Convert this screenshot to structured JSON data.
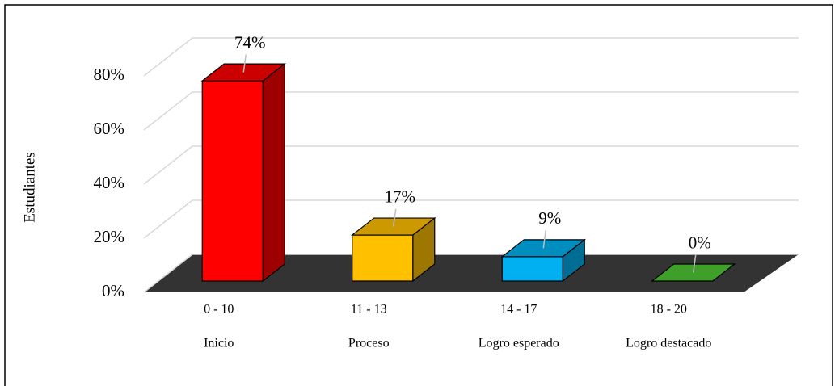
{
  "chart_data": {
    "type": "bar3d",
    "y_label": "Estudiantes",
    "categories": [
      "0 - 10",
      "11 - 13",
      "14 - 17",
      "18 - 20"
    ],
    "levels": [
      "Inicio",
      "Proceso",
      "Logro esperado",
      "Logro destacado"
    ],
    "values": [
      74,
      17,
      9,
      0
    ],
    "value_labels": [
      "74%",
      "17%",
      "9%",
      "0%"
    ],
    "colors": [
      "#ff0000",
      "#ffc000",
      "#00b0f0",
      "#4ec832"
    ],
    "ylim": [
      0,
      80
    ],
    "yticks": [
      {
        "value": 0,
        "label": "0%"
      },
      {
        "value": 20,
        "label": "20%"
      },
      {
        "value": 40,
        "label": "40%"
      },
      {
        "value": 60,
        "label": "60%"
      },
      {
        "value": 80,
        "label": "80%"
      }
    ],
    "grid": true
  }
}
